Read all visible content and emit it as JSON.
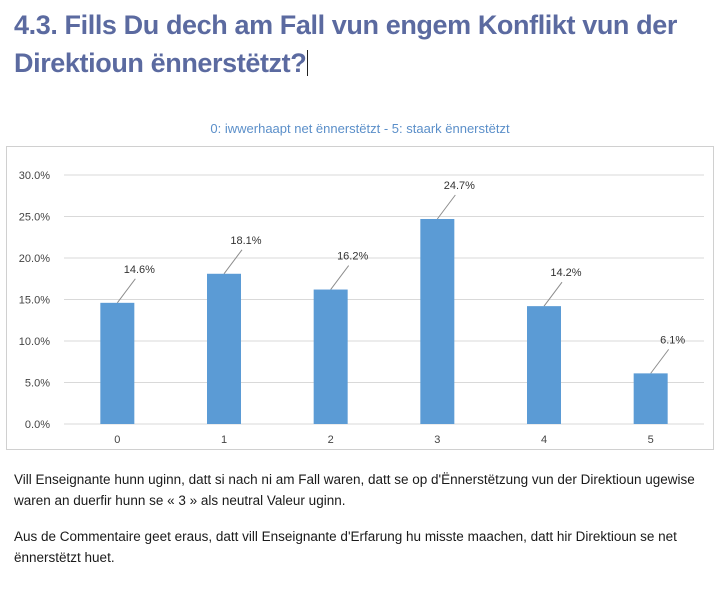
{
  "heading": "4.3. Fills Du dech am Fall vun engem Konflikt vun der Direktioun ënnerstëtzt?",
  "chart_data": {
    "type": "bar",
    "title": "0: iwwerhaapt net ënnerstëtzt - 5: staark ënnerstëtzt",
    "categories": [
      "0",
      "1",
      "2",
      "3",
      "4",
      "5"
    ],
    "values": [
      14.6,
      18.1,
      16.2,
      24.7,
      14.2,
      6.1
    ],
    "data_labels": [
      "14.6%",
      "18.1%",
      "16.2%",
      "24.7%",
      "14.2%",
      "6.1%"
    ],
    "yticks": [
      "0.0%",
      "5.0%",
      "10.0%",
      "15.0%",
      "20.0%",
      "25.0%",
      "30.0%"
    ],
    "ylim": [
      0,
      30
    ],
    "xlabel": "",
    "ylabel": "",
    "grid": true,
    "bar_color": "#5b9bd5"
  },
  "paragraphs": [
    "Vill Enseignante hunn uginn, datt si nach ni am Fall waren, datt se op d'Ënnerstëtzung vun der Direktioun ugewise waren an duerfir hunn se « 3 » als neutral Valeur uginn.",
    "Aus de Commentaire geet eraus, datt vill Enseignante d'Erfarung hu misste maachen, datt hir Direktioun se net ënnerstëtzt huet."
  ]
}
